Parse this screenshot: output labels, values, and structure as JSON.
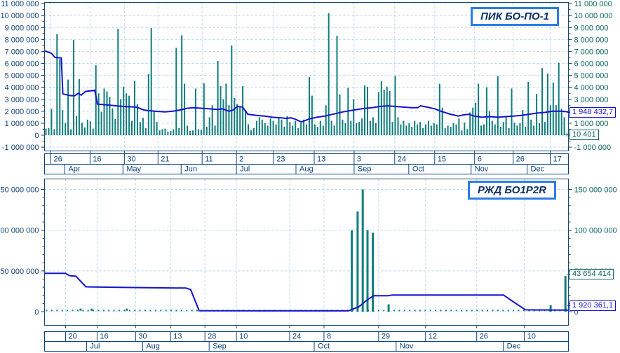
{
  "colors": {
    "bar": "#117d7d",
    "line": "#1212cf",
    "grid": "#b4d4ee",
    "border": "#1d4867",
    "table": "#0a4380",
    "date": "#0a4380",
    "axis_left": "#0d4178",
    "axis_right": "#0e6565",
    "title_border": "#2b7de4",
    "title_text": "#0b2f66",
    "box_blue": "#1212cf",
    "box_teal": "#0e6565"
  },
  "panels": [
    {
      "title": "ПИК БО-ПО-1",
      "value_boxes": [
        {
          "text": "1 948 432,7",
          "value": 1948432.7,
          "color": "blue"
        },
        {
          "text": "10 401",
          "value": 10401,
          "color": "teal"
        }
      ],
      "chart_data": {
        "type": "bar",
        "unit_scale": 1000000,
        "y_min": -1,
        "y_max": 11,
        "y_tick_values_m": [
          11,
          10,
          9,
          8,
          7,
          6,
          5,
          4,
          3,
          2,
          1,
          0,
          -1
        ],
        "y_tick_labels": [
          "11 000 000",
          "10 000 000",
          "9 000 000",
          "8 000 000",
          "7 000 000",
          "6 000 000",
          "5 000 000",
          "4 000 000",
          "3 000 000",
          "2 000 000",
          "1 000 000",
          "0",
          "-1 000 000"
        ],
        "x_day_ticks": {
          "fracs": [
            0.012,
            0.0869,
            0.1524,
            0.2166,
            0.3008,
            0.3663,
            0.4372,
            0.5147,
            0.5909,
            0.6684,
            0.7447,
            0.8209,
            0.8944,
            0.9652
          ],
          "labels": [
            "26",
            "16",
            "30",
            "21",
            "11",
            "2",
            "23",
            "13",
            "3",
            "24",
            "15",
            "6",
            "26",
            "17"
          ]
        },
        "x_month_cells": {
          "fracs": [
            0.0388,
            0.1497,
            0.2607,
            0.3663,
            0.4799,
            0.5909,
            0.6952,
            0.8142,
            0.9211
          ],
          "labels": [
            "Apr",
            "May",
            "Jun",
            "Jul",
            "Aug",
            "Sep",
            "Oct",
            "Nov",
            "Dec"
          ]
        },
        "bars": {
          "start_frac": 0.0027,
          "pitch_frac": 0.005291,
          "values_m": [
            0.55,
            0.6,
            2.2,
            0.5,
            8.45,
            6.35,
            2.1,
            1.0,
            4.65,
            0.5,
            7.95,
            1.6,
            4.7,
            1.05,
            0.65,
            1.3,
            1.15,
            0.55,
            5.85,
            3.5,
            1.95,
            3.9,
            3.65,
            3.2,
            2.25,
            1.35,
            8.9,
            3.0,
            4.05,
            3.5,
            3.3,
            1.2,
            4.55,
            2.6,
            1.1,
            1.45,
            0.6,
            5.1,
            8.95,
            2.05,
            1.1,
            0.4,
            0.5,
            0.55,
            0.3,
            0.35,
            0.5,
            7.3,
            0.6,
            8.35,
            4.3,
            0.8,
            0.35,
            0.4,
            3.9,
            0.5,
            0.45,
            4.35,
            0.7,
            1.5,
            2.5,
            0.8,
            6.2,
            4.1,
            3.0,
            4.3,
            2.5,
            7.5,
            3.1,
            2.6,
            2.4,
            4.1,
            2.1,
            0.9,
            0.4,
            0.6,
            1.2,
            1.5,
            1.3,
            1.0,
            0.8,
            1.4,
            1.2,
            0.9,
            1.5,
            1.3,
            0.7,
            1.6,
            1.1,
            0.8,
            1.2,
            0.6,
            1.0,
            1.3,
            0.9,
            4.85,
            3.3,
            0.9,
            0.7,
            1.2,
            0.8,
            2.5,
            10.2,
            1.2,
            0.8,
            8.3,
            3.4,
            1.3,
            1.0,
            3.95,
            1.2,
            3.0,
            1.0,
            1.1,
            1.4,
            4.15,
            4.05,
            1.2,
            1.5,
            1.0,
            3.6,
            4.5,
            3.8,
            4.05,
            3.7,
            1.1,
            4.95,
            1.5,
            0.9,
            1.2,
            0.8,
            1.0,
            0.7,
            1.2,
            0.9,
            1.1,
            0.6,
            0.9,
            1.2,
            0.8,
            1.0,
            0.9,
            4.3,
            2.3,
            0.6,
            0.8,
            0.7,
            1.0,
            0.9,
            1.4,
            0.4,
            1.05,
            0.5,
            1.9,
            2.3,
            2.7,
            4.3,
            0.8,
            0.9,
            4.0,
            2.0,
            1.2,
            0.9,
            4.95,
            0.7,
            1.1,
            1.5,
            0.6,
            3.9,
            1.05,
            0.8,
            1.0,
            2.1,
            0.7,
            4.45,
            1.3,
            0.8,
            3.45,
            1.0,
            5.6,
            1.1,
            5.15,
            2.5,
            4.4,
            2.5,
            6.05,
            2.2,
            1.5,
            0.01
          ]
        },
        "line_m": [
          [
            0,
            7.05
          ],
          [
            0.013,
            6.85
          ],
          [
            0.02,
            6.5
          ],
          [
            0.032,
            6.45
          ],
          [
            0.035,
            3.45
          ],
          [
            0.05,
            3.3
          ],
          [
            0.058,
            3.3
          ],
          [
            0.064,
            3.5
          ],
          [
            0.07,
            3.35
          ],
          [
            0.078,
            3.65
          ],
          [
            0.096,
            3.75
          ],
          [
            0.101,
            2.6
          ],
          [
            0.125,
            2.5
          ],
          [
            0.15,
            2.4
          ],
          [
            0.175,
            2.35
          ],
          [
            0.19,
            2.1
          ],
          [
            0.21,
            2.0
          ],
          [
            0.23,
            1.95
          ],
          [
            0.245,
            2.0
          ],
          [
            0.258,
            2.1
          ],
          [
            0.272,
            2.25
          ],
          [
            0.285,
            2.3
          ],
          [
            0.3,
            2.25
          ],
          [
            0.315,
            2.2
          ],
          [
            0.33,
            2.15
          ],
          [
            0.34,
            2.2
          ],
          [
            0.352,
            2.0
          ],
          [
            0.36,
            2.1
          ],
          [
            0.368,
            2.4
          ],
          [
            0.378,
            2.35
          ],
          [
            0.388,
            1.75
          ],
          [
            0.405,
            1.65
          ],
          [
            0.42,
            1.6
          ],
          [
            0.435,
            1.5
          ],
          [
            0.452,
            1.45
          ],
          [
            0.462,
            1.4
          ],
          [
            0.47,
            1.45
          ],
          [
            0.478,
            1.35
          ],
          [
            0.49,
            1.1
          ],
          [
            0.505,
            1.35
          ],
          [
            0.52,
            1.5
          ],
          [
            0.535,
            1.6
          ],
          [
            0.555,
            1.8
          ],
          [
            0.57,
            1.95
          ],
          [
            0.59,
            2.1
          ],
          [
            0.605,
            2.2
          ],
          [
            0.625,
            2.3
          ],
          [
            0.64,
            2.4
          ],
          [
            0.655,
            2.45
          ],
          [
            0.67,
            2.4
          ],
          [
            0.685,
            2.35
          ],
          [
            0.7,
            2.3
          ],
          [
            0.712,
            2.3
          ],
          [
            0.718,
            2.45
          ],
          [
            0.73,
            2.35
          ],
          [
            0.745,
            2.2
          ],
          [
            0.76,
            1.95
          ],
          [
            0.775,
            1.75
          ],
          [
            0.79,
            1.6
          ],
          [
            0.8,
            1.7
          ],
          [
            0.81,
            1.75
          ],
          [
            0.82,
            1.6
          ],
          [
            0.835,
            1.5
          ],
          [
            0.85,
            1.55
          ],
          [
            0.865,
            1.5
          ],
          [
            0.88,
            1.55
          ],
          [
            0.895,
            1.6
          ],
          [
            0.91,
            1.65
          ],
          [
            0.925,
            1.75
          ],
          [
            0.94,
            1.85
          ],
          [
            0.955,
            1.9
          ],
          [
            0.97,
            2.0
          ],
          [
            0.985,
            2.0
          ],
          [
            1,
            1.95
          ]
        ],
        "last_marker": {
          "frac": 0.997,
          "value_m": 0.05
        }
      }
    },
    {
      "title": "РЖД БО1P2R",
      "value_boxes": [
        {
          "text": "43 654 414",
          "value": 43654414,
          "color": "teal"
        },
        {
          "text": "1 920 361,1",
          "value": 1920361.1,
          "color": "blue"
        }
      ],
      "chart_data": {
        "type": "bar",
        "unit_scale": 1000000,
        "y_min": 0,
        "y_max": 150,
        "y_tick_values_m": [
          150,
          100,
          50,
          0
        ],
        "y_tick_labels": [
          "150 000 000",
          "100 000 000",
          "50 000 000",
          "0"
        ],
        "x_day_ticks": {
          "fracs": [
            0.0401,
            0.1003,
            0.1738,
            0.2406,
            0.3061,
            0.3663,
            0.4679,
            0.5334,
            0.6377,
            0.7273,
            0.8249,
            0.9158
          ],
          "labels": [
            "20",
            "16",
            "30",
            "13",
            "28",
            "10",
            "24",
            "8",
            "29",
            "12",
            "26",
            "10"
          ]
        },
        "x_month_cells": {
          "fracs": [
            0.0802,
            0.1872,
            0.3142,
            0.5147,
            0.6711,
            0.8757
          ],
          "labels": [
            "Jul",
            "Aug",
            "Sep",
            "Oct",
            "Nov",
            "Dec"
          ]
        },
        "spikes": [
          [
            0.5865,
            100
          ],
          [
            0.5976,
            123
          ],
          [
            0.6074,
            150
          ],
          [
            0.6164,
            100
          ],
          [
            0.6266,
            97
          ],
          [
            0.6568,
            9
          ],
          [
            0.966,
            8
          ],
          [
            0.9942,
            43.654414
          ]
        ],
        "dots": {
          "start_frac": 0.004,
          "end_frac": 0.998,
          "pitch_frac": 0.0099,
          "value_m": 1.5,
          "large_fracs": [
            0.069,
            0.09,
            0.157
          ],
          "large_value_m": 2.8
        },
        "line_m": [
          [
            0,
            47
          ],
          [
            0.04,
            47
          ],
          [
            0.044,
            45.5
          ],
          [
            0.049,
            44
          ],
          [
            0.06,
            43.5
          ],
          [
            0.079,
            30.5
          ],
          [
            0.13,
            30
          ],
          [
            0.193,
            29.5
          ],
          [
            0.27,
            29
          ],
          [
            0.279,
            27
          ],
          [
            0.295,
            1.2
          ],
          [
            0.58,
            1.0
          ],
          [
            0.6,
            6
          ],
          [
            0.615,
            14
          ],
          [
            0.628,
            19.5
          ],
          [
            0.655,
            19.5
          ],
          [
            0.664,
            20.5
          ],
          [
            0.876,
            20.5
          ],
          [
            0.895,
            12
          ],
          [
            0.918,
            2.2
          ],
          [
            1,
            1.92
          ]
        ]
      }
    }
  ]
}
